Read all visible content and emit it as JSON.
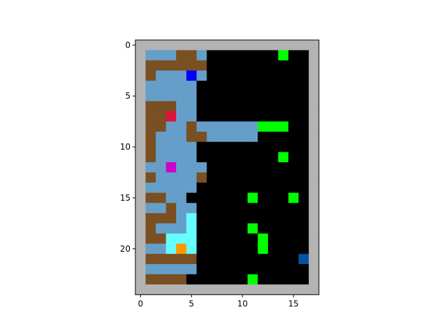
{
  "grid": {
    "cols": 18,
    "rows": 25,
    "palette": {
      "W": "#b3b3b3",
      "F": "#659fc9",
      "D": "#7a4f21",
      "K": "#000000",
      "G": "#00ff00",
      "C": "#66ffff",
      "B": "#0000ff",
      "R": "#dc143c",
      "M": "#cc00cc",
      "O": "#ff9900",
      "N": "#0052a3"
    },
    "layout": [
      "WWWWWWWWWWWWWWWWWW",
      "WFFFDDFKKKKKKKGKKW",
      "WDDDDDDKKKKKKKKKKW",
      "WDFFFBFKKKKKKKKKKW",
      "WFFFFFKKKKKKKKKKKW",
      "WFFFFFKKKKKKKKKKKW",
      "WDDDFFKKKKKKKKKKKW",
      "WDDRFFKKKKKKKKKKKW",
      "WDDFFDFFFFFFGGGKKW",
      "WDFFFDDFFFFFKKKKKW",
      "WDFFFFKKKKKKKKKKKW",
      "WDFFFFKKKKKKKKGKKW",
      "WFFMFFFKKKKKKKKKKW",
      "WDFFFFDKKKKKKKKKKW",
      "WFFFFFKKKKKKKKKKKW",
      "WDDFFKKKKKKGKKKGKW",
      "WFFDFFKKKKKKKKKKKW",
      "WDDDFCKKKKKKKKKKKW",
      "WDFFFCKKKKKGKKKKKW",
      "WDDCCCKKKKKKGKKKKW",
      "WFFCOCKKKKKKGKKKKW",
      "WDDDDDKKKKKKKKKKNW",
      "WFFFFFKKKKKKKKKKKW",
      "WDDDDKKKKKKGKKKKKW",
      "WWWWWWWWWWWWWWWWWW"
    ]
  },
  "axes": {
    "x_ticks": [
      "0",
      "5",
      "10",
      "15"
    ],
    "y_ticks": [
      "0",
      "5",
      "10",
      "15",
      "20"
    ]
  }
}
